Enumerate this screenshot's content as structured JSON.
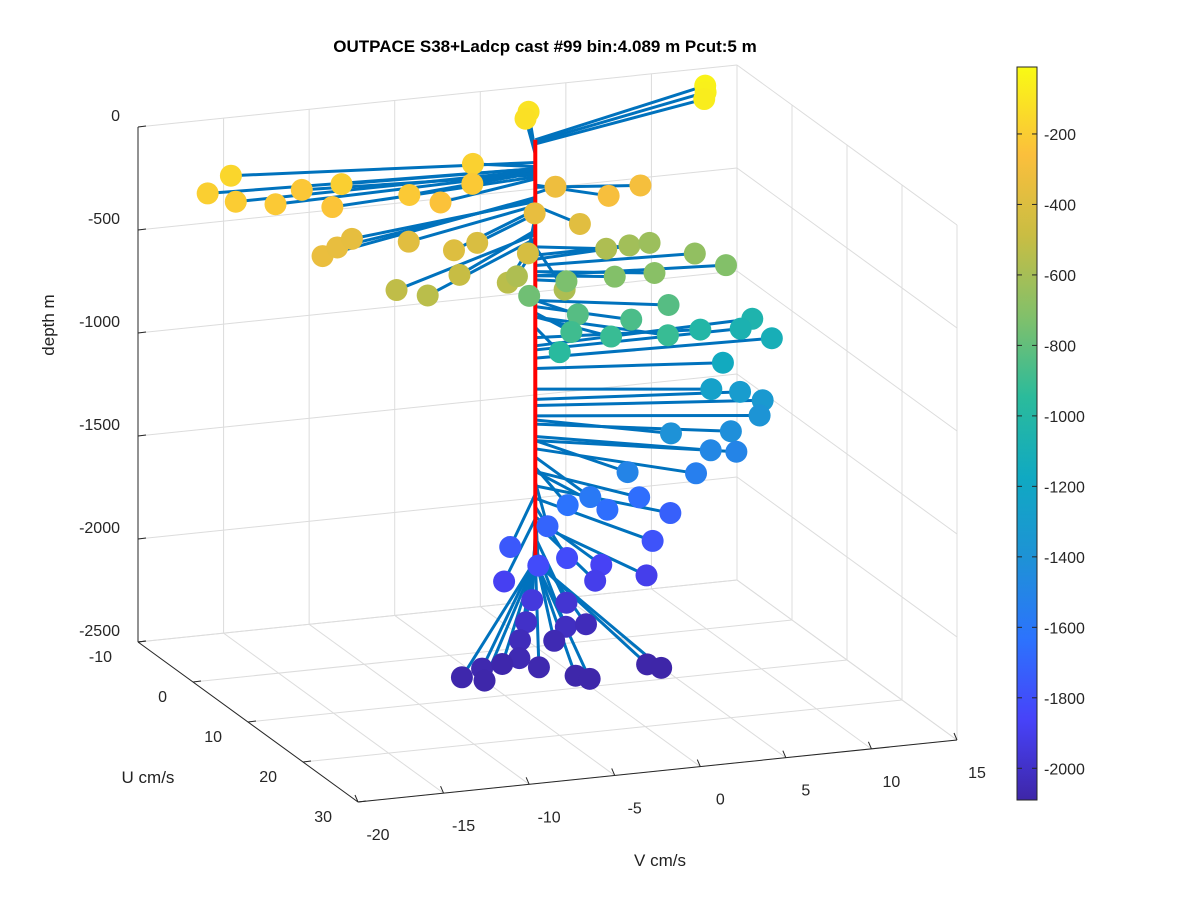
{
  "chart_data": {
    "type": "scatter",
    "title": "OUTPACE S38+Ladcp cast #99 bin:4.089 m  Pcut:5 m",
    "xlabel": "V cm/s",
    "ylabel": "U cm/s",
    "zlabel": "depth m",
    "v_ticks": [
      -20,
      -15,
      -10,
      -5,
      0,
      5,
      10,
      15
    ],
    "u_ticks": [
      -10,
      0,
      10,
      20,
      30
    ],
    "depth_ticks": [
      0,
      -500,
      -1000,
      -1500,
      -2000,
      -2500
    ],
    "vlim": [
      -20,
      15
    ],
    "ulim": [
      -10,
      30
    ],
    "zlim": [
      -2500,
      0
    ],
    "grid": true,
    "colorbar": {
      "ticks": [
        -200,
        -400,
        -600,
        -800,
        -1000,
        -1200,
        -1400,
        -1600,
        -1800,
        -2000
      ],
      "range": [
        -2090,
        -10
      ],
      "colormap": [
        "#3e26a8",
        "#4743f9",
        "#2c73fd",
        "#1e92d6",
        "#10a9c2",
        "#2bbb9b",
        "#82c06a",
        "#c9bd43",
        "#fbbf3c",
        "#f9fa14"
      ]
    },
    "stick_color": "#0072bd",
    "reference_line_color": "#ff0000",
    "points": [
      {
        "v": 12.5,
        "u": -8,
        "z": -40
      },
      {
        "v": 12.2,
        "u": -7,
        "z": -50
      },
      {
        "v": 11.8,
        "u": -6,
        "z": -60
      },
      {
        "v": 2.5,
        "u": -9,
        "z": -100
      },
      {
        "v": 2,
        "u": -8,
        "z": -110
      },
      {
        "v": -18.5,
        "u": -2,
        "z": -180
      },
      {
        "v": -17.5,
        "u": 0,
        "z": -190
      },
      {
        "v": -16.5,
        "u": -4,
        "z": -150
      },
      {
        "v": -15.5,
        "u": 1,
        "z": -200
      },
      {
        "v": -13,
        "u": -2,
        "z": -210
      },
      {
        "v": -12.5,
        "u": 2,
        "z": -220
      },
      {
        "v": -11,
        "u": -1,
        "z": -180
      },
      {
        "v": -8,
        "u": 2,
        "z": -200
      },
      {
        "v": -6.5,
        "u": 3,
        "z": -230
      },
      {
        "v": -4,
        "u": 1,
        "z": -200
      },
      {
        "v": -3,
        "u": -2,
        "z": -170
      },
      {
        "v": 3,
        "u": 4,
        "z": -260
      },
      {
        "v": 5.5,
        "u": 2,
        "z": -270
      },
      {
        "v": -15,
        "u": 8,
        "z": -320
      },
      {
        "v": -13.5,
        "u": 6,
        "z": -330
      },
      {
        "v": -12,
        "u": 4,
        "z": -340
      },
      {
        "v": -9,
        "u": 5,
        "z": -360
      },
      {
        "v": -7,
        "u": 7,
        "z": -380
      },
      {
        "v": -5,
        "u": 5,
        "z": -400
      },
      {
        "v": -3,
        "u": 8,
        "z": -410
      },
      {
        "v": -1,
        "u": 3,
        "z": -330
      },
      {
        "v": 1,
        "u": 5,
        "z": -360
      },
      {
        "v": 1.5,
        "u": -1,
        "z": -300
      },
      {
        "v": -11,
        "u": 9,
        "z": -500
      },
      {
        "v": -9.5,
        "u": 10,
        "z": -520
      },
      {
        "v": -7,
        "u": 8,
        "z": -480
      },
      {
        "v": -4.5,
        "u": 9,
        "z": -520
      },
      {
        "v": -3,
        "u": 6,
        "z": -560
      },
      {
        "v": -1.5,
        "u": 10,
        "z": -560
      },
      {
        "v": 3.5,
        "u": 2,
        "z": -560
      },
      {
        "v": 5.5,
        "u": 0,
        "z": -600
      },
      {
        "v": 7,
        "u": -1,
        "z": -620
      },
      {
        "v": 9,
        "u": 1,
        "z": -650
      },
      {
        "v": 10.5,
        "u": 2,
        "z": -700
      },
      {
        "v": 6,
        "u": 3,
        "z": -680
      },
      {
        "v": 4,
        "u": 2,
        "z": -700
      },
      {
        "v": 1.5,
        "u": 1,
        "z": -720
      },
      {
        "v": -1,
        "u": 2,
        "z": -750
      },
      {
        "v": 1.2,
        "u": 4,
        "z": -820
      },
      {
        "v": 4,
        "u": 5,
        "z": -850
      },
      {
        "v": 6.5,
        "u": 4,
        "z": -820
      },
      {
        "v": 2.5,
        "u": 6,
        "z": -900
      },
      {
        "v": 5.5,
        "u": 7,
        "z": -900
      },
      {
        "v": 0.5,
        "u": 5,
        "z": -880
      },
      {
        "v": -0.5,
        "u": 6,
        "z": -950
      },
      {
        "v": 9,
        "u": 2,
        "z": -1000
      },
      {
        "v": 12,
        "u": 0,
        "z": -1060
      },
      {
        "v": 13,
        "u": -1,
        "z": -1040
      },
      {
        "v": 13.5,
        "u": 1,
        "z": -1100
      },
      {
        "v": 10,
        "u": 3,
        "z": -1150
      },
      {
        "v": 9,
        "u": 4,
        "z": -1250
      },
      {
        "v": 11,
        "u": 3,
        "z": -1300
      },
      {
        "v": 12,
        "u": 4,
        "z": -1330
      },
      {
        "v": 9.5,
        "u": 6,
        "z": -1420
      },
      {
        "v": 11.5,
        "u": 5,
        "z": -1380
      },
      {
        "v": 8,
        "u": 7,
        "z": -1480
      },
      {
        "v": 6.5,
        "u": 9,
        "z": -1540
      },
      {
        "v": 9.5,
        "u": 7,
        "z": -1500
      },
      {
        "v": 6,
        "u": 6,
        "z": -1400
      },
      {
        "v": 2.5,
        "u": 9,
        "z": -1500
      },
      {
        "v": -1,
        "u": 9,
        "z": -1630
      },
      {
        "v": 0,
        "u": 10,
        "z": -1580
      },
      {
        "v": 1,
        "u": 10,
        "z": -1650
      },
      {
        "v": 3.5,
        "u": 8,
        "z": -1650
      },
      {
        "v": 5,
        "u": 9,
        "z": -1720
      },
      {
        "v": 3,
        "u": 12,
        "z": -1780
      },
      {
        "v": -2.5,
        "u": 10,
        "z": -1700
      },
      {
        "v": -5,
        "u": 11,
        "z": -1760
      },
      {
        "v": -4,
        "u": 13,
        "z": -1820
      },
      {
        "v": -2,
        "u": 12,
        "z": -1820
      },
      {
        "v": 0,
        "u": 12,
        "z": -1870
      },
      {
        "v": 2,
        "u": 14,
        "z": -1900
      },
      {
        "v": -1,
        "u": 14,
        "z": -1900
      },
      {
        "v": -6,
        "u": 13,
        "z": -1880
      },
      {
        "v": -5,
        "u": 15,
        "z": -1940
      },
      {
        "v": -3,
        "u": 15,
        "z": -1970
      },
      {
        "v": -6,
        "u": 17,
        "z": -2000
      },
      {
        "v": -4,
        "u": 18,
        "z": -2020
      },
      {
        "v": -2.5,
        "u": 17,
        "z": -2040
      },
      {
        "v": -7,
        "u": 19,
        "z": -2040
      },
      {
        "v": -5,
        "u": 19,
        "z": -2060
      },
      {
        "v": -8,
        "u": 22,
        "z": -2060
      },
      {
        "v": -9,
        "u": 22,
        "z": -2080
      },
      {
        "v": -10.5,
        "u": 23,
        "z": -2070
      },
      {
        "v": -12,
        "u": 24,
        "z": -2080
      },
      {
        "v": -11,
        "u": 25,
        "z": -2085
      },
      {
        "v": -7.5,
        "u": 24,
        "z": -2070
      },
      {
        "v": -6,
        "u": 26,
        "z": -2085
      },
      {
        "v": -5.5,
        "u": 27,
        "z": -2085
      },
      {
        "v": -1.5,
        "u": 25,
        "z": -2088
      },
      {
        "v": -1,
        "u": 26,
        "z": -2090
      }
    ]
  }
}
